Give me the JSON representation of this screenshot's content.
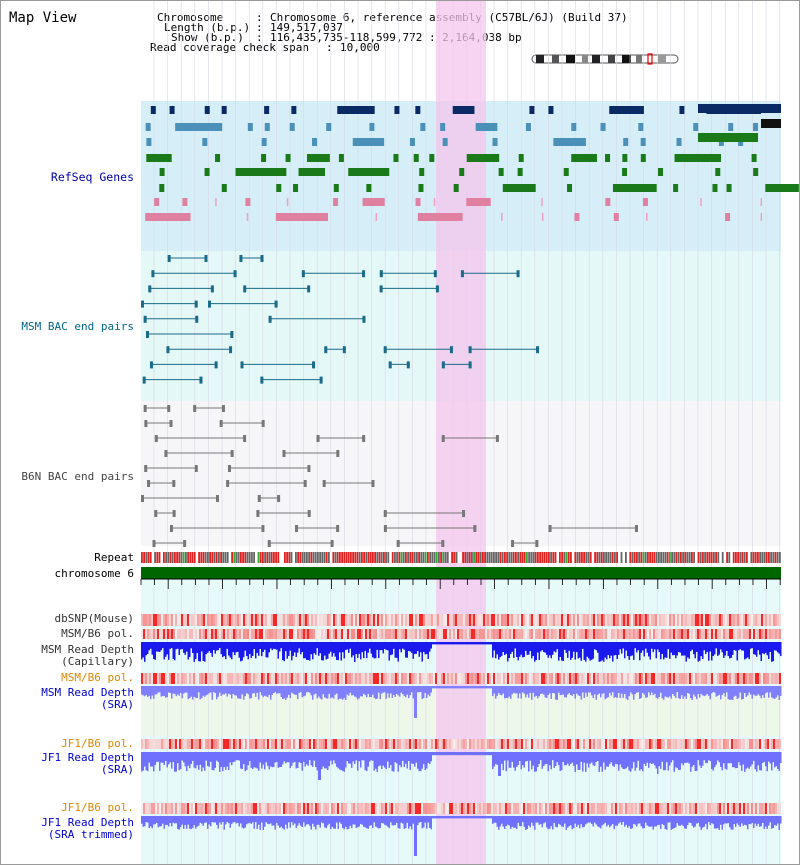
{
  "page": {
    "title": "Map View"
  },
  "info": {
    "chromosome_label": "Chromosome",
    "chromosome_value": "Chromosome 6, reference assembly (C57BL/6J) (Build 37)",
    "length_label": "Length (b.p.)",
    "length_value": "149,517,037",
    "show_label": "Show (b.p.)",
    "show_value": "116,435,735-118,599,772 : 2,164,038 bp",
    "coverage_label": "Read coverage check span",
    "coverage_value": "10,000"
  },
  "tracks": {
    "refseq": "RefSeq Genes",
    "msm_bac": "MSM BAC end pairs",
    "b6n_bac": "B6N BAC end pairs",
    "repeat": "Repeat",
    "chromosome": "chromosome 6",
    "dbsnp": "dbSNP(Mouse)",
    "msm_b6_pol_1": "MSM/B6 pol.",
    "msm_depth_cap": "MSM Read Depth\n(Capillary)",
    "msm_b6_pol_2": "MSM/B6 pol.",
    "msm_depth_sra": "MSM Read Depth\n(SRA)",
    "jf1_b6_pol_1": "JF1/B6 pol.",
    "jf1_depth_sra": "JF1 Read Depth\n(SRA)",
    "jf1_b6_pol_2": "JF1/B6 pol.",
    "jf1_depth_trim": "JF1 Read Depth\n(SRA trimmed)"
  },
  "axis": {
    "ticks": [
      "116800000",
      "117200000",
      "117600000",
      "118000000",
      "118400000"
    ]
  },
  "colors": {
    "refseq_label": "#0000aa",
    "msm_label": "#006688",
    "b6n_label": "#444444",
    "pol_label": "#dd8800",
    "depth_label": "#0000cc",
    "highlight": "#f4c6ee",
    "refseq_bg": "#d6eef8",
    "msm_bg": "#e4f8f8",
    "b6n_bg": "#f6f6f8",
    "chromosome_bar": "#006600"
  }
}
